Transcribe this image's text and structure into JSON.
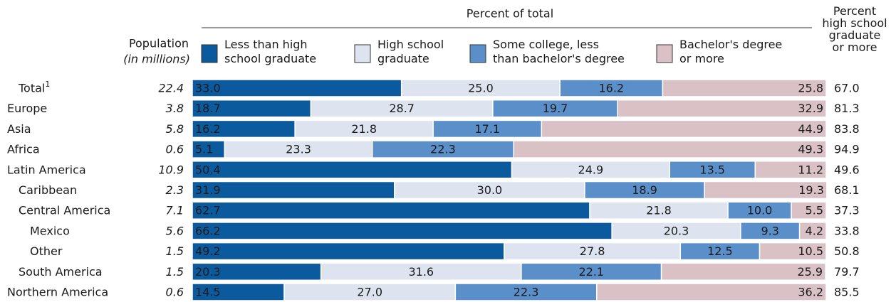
{
  "chart_data": {
    "type": "bar",
    "orientation": "horizontal",
    "stacked": true,
    "axis_title": "Percent of total",
    "categories": [
      "Total",
      "Europe",
      "Asia",
      "Africa",
      "Latin America",
      "Caribbean",
      "Central America",
      "Mexico",
      "Other",
      "South America",
      "Northern America"
    ],
    "total_footnote": "1",
    "xlim": [
      0,
      100
    ],
    "population": {
      "title": "Population",
      "subtitle": "(in millions)",
      "values": [
        22.4,
        3.8,
        5.8,
        0.6,
        10.9,
        2.3,
        7.1,
        5.6,
        1.5,
        1.5,
        0.6
      ]
    },
    "hs_graduate": {
      "title": "Percent high school graduate or more",
      "values": [
        67.0,
        81.3,
        83.8,
        94.9,
        49.6,
        68.1,
        37.3,
        33.8,
        50.8,
        79.7,
        85.5
      ],
      "value_labels": [
        "67.0",
        "81.3",
        "83.8",
        "94.9",
        "49.6",
        "68.1",
        "37.3",
        "33.8",
        "50.8",
        "79.7",
        "85.5"
      ]
    },
    "series": [
      {
        "name": "Less than high school graduate",
        "color": "#0b5a9e",
        "values": [
          33.0,
          18.7,
          16.2,
          5.1,
          50.4,
          31.9,
          62.7,
          66.2,
          49.2,
          20.3,
          14.5
        ],
        "value_labels": [
          "33.0",
          "18.7",
          "16.2",
          "5.1",
          "50.4",
          "31.9",
          "62.7",
          "66.2",
          "49.2",
          "20.3",
          "14.5"
        ]
      },
      {
        "name": "High school graduate",
        "color": "#dde4f0",
        "values": [
          25.0,
          28.7,
          21.8,
          23.3,
          24.9,
          30.0,
          21.8,
          20.3,
          27.8,
          31.6,
          27.0
        ],
        "value_labels": [
          "25.0",
          "28.7",
          "21.8",
          "23.3",
          "24.9",
          "30.0",
          "21.8",
          "20.3",
          "27.8",
          "31.6",
          "27.0"
        ]
      },
      {
        "name": "Some college, less than bachelor's degree",
        "color": "#5b8fca",
        "values": [
          16.2,
          19.7,
          17.1,
          22.3,
          13.5,
          18.9,
          10.0,
          9.3,
          12.5,
          22.1,
          22.3
        ],
        "value_labels": [
          "16.2",
          "19.7",
          "17.1",
          "22.3",
          "13.5",
          "18.9",
          "10.0",
          "9.3",
          "12.5",
          "22.1",
          "22.3"
        ]
      },
      {
        "name": "Bachelor's degree or more",
        "color": "#d9c1c6",
        "values": [
          25.8,
          32.9,
          44.9,
          49.3,
          11.2,
          19.3,
          5.5,
          4.2,
          10.5,
          25.9,
          36.2
        ],
        "value_labels": [
          "25.8",
          "32.9",
          "44.9",
          "49.3",
          "11.2",
          "19.3",
          "5.5",
          "4.2",
          "10.5",
          "25.9",
          "36.2"
        ]
      }
    ]
  }
}
